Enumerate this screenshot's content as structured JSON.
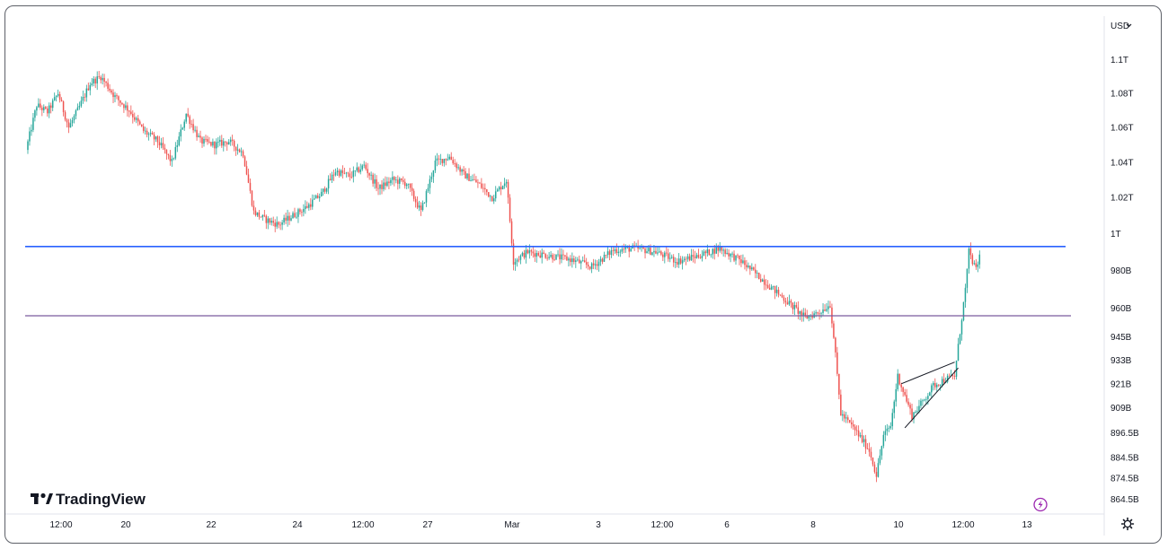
{
  "brand": {
    "name": "TradingView"
  },
  "currency_selector": {
    "label": "USD"
  },
  "icons": {
    "settings": "gear-icon",
    "lightning": "lightning-icon",
    "dropdown": "chevron-down-icon",
    "logo": "tradingview-logo-icon"
  },
  "colors": {
    "up": "#26a69a",
    "down": "#ef5350",
    "hline_blue": "#2962ff",
    "hline_purple": "#7b5a9e",
    "trendline": "#131722",
    "lightning": "#9c27b0"
  },
  "chart_data": {
    "type": "candlestick",
    "title": "",
    "x_tick_labels": [
      "12:00",
      "20",
      "22",
      "24",
      "12:00",
      "27",
      "Mar",
      "3",
      "12:00",
      "6",
      "8",
      "10",
      "12:00",
      "13"
    ],
    "y_tick_labels": [
      "1.1T",
      "1.08T",
      "1.06T",
      "1.04T",
      "1.02T",
      "1T",
      "980B",
      "960B",
      "945B",
      "933B",
      "921B",
      "909B",
      "896.5B",
      "884.5B",
      "874.5B",
      "864.5B"
    ],
    "y_axis_scale": "log",
    "close_path": [
      {
        "x": "19 Feb 06:00",
        "y": 1047000000000.0
      },
      {
        "x": "19 Feb 12:00",
        "y": 1073000000000.0
      },
      {
        "x": "19 Feb 18:00",
        "y": 1069000000000.0
      },
      {
        "x": "20 Feb 00:00",
        "y": 1080000000000.0
      },
      {
        "x": "20 Feb 06:00",
        "y": 1060000000000.0
      },
      {
        "x": "20 Feb 12:00",
        "y": 1072000000000.0
      },
      {
        "x": "20 Feb 18:00",
        "y": 1086000000000.0
      },
      {
        "x": "21 Feb 00:00",
        "y": 1090000000000.0
      },
      {
        "x": "21 Feb 08:00",
        "y": 1078000000000.0
      },
      {
        "x": "21 Feb 16:00",
        "y": 1070000000000.0
      },
      {
        "x": "22 Feb 00:00",
        "y": 1058000000000.0
      },
      {
        "x": "22 Feb 08:00",
        "y": 1052000000000.0
      },
      {
        "x": "22 Feb 16:00",
        "y": 1040000000000.0
      },
      {
        "x": "23 Feb 00:00",
        "y": 1068000000000.0
      },
      {
        "x": "23 Feb 08:00",
        "y": 1052000000000.0
      },
      {
        "x": "23 Feb 16:00",
        "y": 1050000000000.0
      },
      {
        "x": "24 Feb 00:00",
        "y": 1052000000000.0
      },
      {
        "x": "24 Feb 08:00",
        "y": 1045000000000.0
      },
      {
        "x": "24 Feb 14:00",
        "y": 1012000000000.0
      },
      {
        "x": "24 Feb 20:00",
        "y": 1008000000000.0
      },
      {
        "x": "25 Feb 04:00",
        "y": 1005000000000.0
      },
      {
        "x": "25 Feb 12:00",
        "y": 1010000000000.0
      },
      {
        "x": "25 Feb 20:00",
        "y": 1015000000000.0
      },
      {
        "x": "26 Feb 04:00",
        "y": 1022000000000.0
      },
      {
        "x": "26 Feb 12:00",
        "y": 1035000000000.0
      },
      {
        "x": "26 Feb 20:00",
        "y": 1032000000000.0
      },
      {
        "x": "27 Feb 04:00",
        "y": 1038000000000.0
      },
      {
        "x": "27 Feb 12:00",
        "y": 1025000000000.0
      },
      {
        "x": "27 Feb 20:00",
        "y": 1030000000000.0
      },
      {
        "x": "28 Feb 04:00",
        "y": 1028000000000.0
      },
      {
        "x": "28 Feb 12:00",
        "y": 1012000000000.0
      },
      {
        "x": "28 Feb 20:00",
        "y": 1040000000000.0
      },
      {
        "x": "1 Mar 04:00",
        "y": 1043000000000.0
      },
      {
        "x": "1 Mar 12:00",
        "y": 1033000000000.0
      },
      {
        "x": "1 Mar 20:00",
        "y": 1028000000000.0
      },
      {
        "x": "2 Mar 04:00",
        "y": 1020000000000.0
      },
      {
        "x": "2 Mar 12:00",
        "y": 1030000000000.0
      },
      {
        "x": "2 Mar 16:00",
        "y": 985000000000.0
      },
      {
        "x": "3 Mar 00:00",
        "y": 990000000000.0
      },
      {
        "x": "3 Mar 12:00",
        "y": 988000000000.0
      },
      {
        "x": "4 Mar 00:00",
        "y": 986000000000.0
      },
      {
        "x": "4 Mar 12:00",
        "y": 982000000000.0
      },
      {
        "x": "5 Mar 00:00",
        "y": 991000000000.0
      },
      {
        "x": "5 Mar 12:00",
        "y": 992000000000.0
      },
      {
        "x": "6 Mar 00:00",
        "y": 990000000000.0
      },
      {
        "x": "6 Mar 12:00",
        "y": 985000000000.0
      },
      {
        "x": "7 Mar 00:00",
        "y": 988000000000.0
      },
      {
        "x": "7 Mar 12:00",
        "y": 992000000000.0
      },
      {
        "x": "8 Mar 00:00",
        "y": 985000000000.0
      },
      {
        "x": "8 Mar 12:00",
        "y": 975000000000.0
      },
      {
        "x": "9 Mar 00:00",
        "y": 965000000000.0
      },
      {
        "x": "9 Mar 12:00",
        "y": 955000000000.0
      },
      {
        "x": "9 Mar 20:00",
        "y": 958000000000.0
      },
      {
        "x": "10 Mar 02:00",
        "y": 962000000000.0
      },
      {
        "x": "10 Mar 04:00",
        "y": 945000000000.0
      },
      {
        "x": "10 Mar 08:00",
        "y": 906000000000.0
      },
      {
        "x": "10 Mar 16:00",
        "y": 898000000000.0
      },
      {
        "x": "11 Mar 00:00",
        "y": 888000000000.0
      },
      {
        "x": "11 Mar 04:00",
        "y": 876000000000.0
      },
      {
        "x": "11 Mar 08:00",
        "y": 895000000000.0
      },
      {
        "x": "11 Mar 12:00",
        "y": 900000000000.0
      },
      {
        "x": "11 Mar 16:00",
        "y": 925000000000.0
      },
      {
        "x": "11 Mar 20:00",
        "y": 915000000000.0
      },
      {
        "x": "12 Mar 00:00",
        "y": 905000000000.0
      },
      {
        "x": "12 Mar 06:00",
        "y": 912000000000.0
      },
      {
        "x": "12 Mar 12:00",
        "y": 920000000000.0
      },
      {
        "x": "12 Mar 18:00",
        "y": 923000000000.0
      },
      {
        "x": "13 Mar 00:00",
        "y": 925000000000.0
      },
      {
        "x": "13 Mar 02:00",
        "y": 940000000000.0
      },
      {
        "x": "13 Mar 04:00",
        "y": 955000000000.0
      },
      {
        "x": "13 Mar 06:00",
        "y": 970000000000.0
      },
      {
        "x": "13 Mar 08:00",
        "y": 990000000000.0
      },
      {
        "x": "13 Mar 10:00",
        "y": 985000000000.0
      },
      {
        "x": "13 Mar 12:00",
        "y": 980000000000.0
      },
      {
        "x": "13 Mar 14:00",
        "y": 988000000000.0
      }
    ],
    "horizontal_lines": [
      {
        "y": 993000000000.0,
        "color": "blue"
      },
      {
        "y": 956000000000.0,
        "color": "purple"
      }
    ],
    "trendlines": [
      {
        "from": {
          "x": "11 Mar 18:00",
          "y": 921000000000.0
        },
        "to": {
          "x": "13 Mar 00:00",
          "y": 932000000000.0
        }
      },
      {
        "from": {
          "x": "11 Mar 20:00",
          "y": 899000000000.0
        },
        "to": {
          "x": "13 Mar 02:00",
          "y": 929000000000.0
        }
      }
    ],
    "grid": false,
    "legend": "none"
  }
}
